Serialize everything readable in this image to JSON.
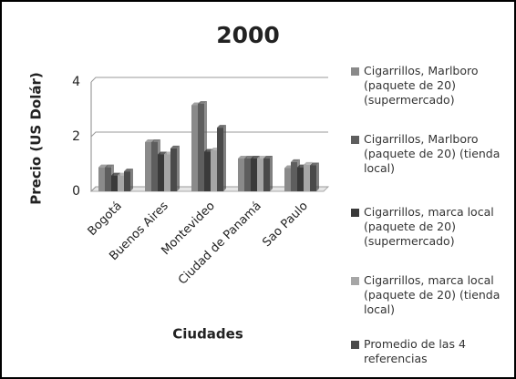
{
  "chart_data": {
    "type": "bar",
    "title": "2000",
    "x_label": "Ciudades",
    "y_label": "Precio (US Dolár)",
    "categories": [
      "Bogotá",
      "Buenos Aires",
      "Montevideo",
      "Ciudad de Panamá",
      "Sao Paulo"
    ],
    "series": [
      {
        "name": "Cigarrillos, Marlboro (paquete de 20) (supermercado)",
        "color": "#8a8a8a",
        "values": [
          0.88,
          1.8,
          3.15,
          1.2,
          0.85
        ]
      },
      {
        "name": "Cigarrillos, Marlboro (paquete de 20) (tienda local)",
        "color": "#5e5e5e",
        "values": [
          0.88,
          1.8,
          3.2,
          1.2,
          1.07
        ]
      },
      {
        "name": "Cigarrillos, marca local (paquete de 20) (supermercado)",
        "color": "#3a3a3a",
        "values": [
          0.58,
          1.35,
          1.45,
          1.2,
          0.88
        ]
      },
      {
        "name": "Cigarrillos, marca local (paquete de 20) (tienda local)",
        "color": "#a6a6a6",
        "values": [
          0.58,
          1.35,
          1.5,
          1.2,
          0.97
        ]
      },
      {
        "name": "Promedio de las 4 referencias",
        "color": "#4a4a4a",
        "values": [
          0.73,
          1.57,
          2.33,
          1.2,
          0.95
        ]
      }
    ],
    "ylim": [
      0,
      4
    ],
    "yticks": [
      0,
      2,
      4
    ],
    "grid": true,
    "legend": "right"
  }
}
